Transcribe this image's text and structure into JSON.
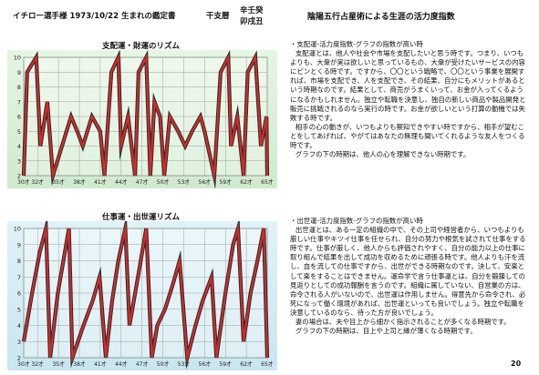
{
  "header": {
    "title": "イチロー選手様 1973/10/22 生まれの鑑定書",
    "kanshi_label": "干支暦",
    "kanshi_value_1": "辛壬癸",
    "kanshi_value_2": "卯戌丑",
    "doc_title": "陰陽五行占星術による生涯の活力度指数"
  },
  "chart_data": [
    {
      "type": "line",
      "title": "支配運・財運のリズム",
      "x": [
        "30才",
        "32才",
        "35才",
        "38才",
        "41才",
        "44才",
        "47才",
        "50才",
        "53才",
        "56才",
        "59才",
        "62才",
        "65才"
      ],
      "x_ages": [
        30,
        32,
        35,
        38,
        41,
        44,
        47,
        50,
        53,
        56,
        59,
        62,
        65
      ],
      "ylim": [
        2,
        10
      ],
      "yticks": [
        2,
        3,
        4,
        5,
        6,
        7,
        8,
        9,
        10
      ],
      "grid": true,
      "series": [
        {
          "values": [
            [
              30,
              2
            ],
            [
              30.5,
              9
            ],
            [
              31.8,
              10
            ],
            [
              32.4,
              4
            ],
            [
              33.4,
              7
            ],
            [
              34.2,
              2
            ],
            [
              35.5,
              4
            ],
            [
              36.8,
              6
            ],
            [
              37.7,
              5
            ],
            [
              38.5,
              4
            ],
            [
              39.8,
              6
            ],
            [
              41,
              5
            ],
            [
              41.6,
              2
            ],
            [
              42.6,
              9
            ],
            [
              43.6,
              10
            ],
            [
              44,
              4
            ],
            [
              45,
              6
            ],
            [
              46,
              2
            ],
            [
              46.5,
              9
            ],
            [
              47.6,
              10
            ],
            [
              48.2,
              2
            ],
            [
              48.8,
              7
            ],
            [
              49.6,
              6
            ],
            [
              50.2,
              2
            ],
            [
              51,
              6
            ],
            [
              52.2,
              5
            ],
            [
              53.2,
              4
            ],
            [
              54.2,
              5
            ],
            [
              55.4,
              6
            ],
            [
              56,
              5
            ],
            [
              57.4,
              2
            ],
            [
              58.3,
              9
            ],
            [
              59.4,
              10
            ],
            [
              59.8,
              4
            ],
            [
              60.7,
              6
            ],
            [
              61.6,
              2
            ],
            [
              62.2,
              9
            ],
            [
              63.3,
              10
            ],
            [
              64.1,
              4
            ],
            [
              64.9,
              6
            ],
            [
              65,
              2
            ]
          ]
        }
      ],
      "colors": {
        "line_fill": "#d42a2a",
        "line_edge": "#2a2a2a"
      }
    },
    {
      "type": "line",
      "title": "仕事運・出世運リズム",
      "x": [
        "30才",
        "32才",
        "35才",
        "38才",
        "41才",
        "44才",
        "47才",
        "50才",
        "53才",
        "56才",
        "59才",
        "62才",
        "65才"
      ],
      "x_ages": [
        30,
        32,
        35,
        38,
        41,
        44,
        47,
        50,
        53,
        56,
        59,
        62,
        65
      ],
      "ylim": [
        2,
        10
      ],
      "yticks": [
        2,
        3,
        4,
        5,
        6,
        7,
        8,
        9,
        10
      ],
      "grid": true,
      "series": [
        {
          "values": [
            [
              30,
              3
            ],
            [
              31.2,
              6
            ],
            [
              32.3,
              8.5
            ],
            [
              33.2,
              10
            ],
            [
              33.8,
              2
            ],
            [
              34.9,
              6
            ],
            [
              35.7,
              8
            ],
            [
              36.5,
              10
            ],
            [
              37,
              2
            ],
            [
              38.6,
              4
            ],
            [
              39.9,
              5.5
            ],
            [
              40.9,
              7
            ],
            [
              41.8,
              2
            ],
            [
              42.7,
              5.5
            ],
            [
              43.6,
              8
            ],
            [
              44.6,
              10
            ],
            [
              45.2,
              4
            ],
            [
              46.5,
              7.2
            ],
            [
              47.6,
              10
            ],
            [
              48.4,
              2
            ],
            [
              49.2,
              4
            ],
            [
              50.3,
              5
            ],
            [
              51.4,
              6.5
            ],
            [
              52.4,
              8
            ],
            [
              53.5,
              2
            ],
            [
              54.7,
              4
            ],
            [
              55.7,
              5.5
            ],
            [
              57,
              7
            ],
            [
              57.7,
              2
            ],
            [
              59,
              6
            ],
            [
              60.1,
              9
            ],
            [
              60.8,
              10
            ],
            [
              61.6,
              3
            ],
            [
              62.6,
              6
            ],
            [
              63.6,
              8
            ],
            [
              64.5,
              10
            ],
            [
              65,
              2
            ]
          ]
        }
      ],
      "colors": {
        "line_fill": "#d42a2a",
        "line_edge": "#2a2a2a"
      }
    }
  ],
  "text1": {
    "heading": "・支配運-活力度指数-グラフの指数が高い時",
    "body1": "支配運とは、他人や社会や市場を支配したいと思う時です。つまり、いつもよりも、大衆が実は欲しいと思っているもの、大衆が受けたいサービスの内容にピンとくる時です。ですから、〇〇という戦略で、〇〇という事業を展開すれば、市場を支配でき、人を支配でき、その結果、自分にもメリットがあるという時期なのです。結果として、商売がうまくいって、お金が入ってくるようになるかもしれません。独立や転職を決意し、独自の新しい商品や製品開発と販売に挑戦されるのなら実行の時です。お金が欲しいという打算の動機では失敗する時です。",
    "body2": "相手の心の動きが、いつもよりも察知できやすい時ですから、相手が望むことをしてあげれば、やがてはあなたの無理も聞いてくれるような友人をつくる時です。",
    "body3": "グラフの下の時期は、他人の心を理解できない時期です。"
  },
  "text2": {
    "heading": "・出世運-活力度指数-グラフの指数が高い時",
    "body1": "出世運とは、ある一定の組織の中で、その上司や経営者から、いつもよりも厳しい仕事やキツイ仕事を任せられ、自分の努力や根気を試されて仕事をする時です。仕事が厳しく、他人からも評価されやすく、自分の能力以上の仕事に取り組んで結果を出して成功を収めるために頑張る時です。他人よりも汗を流し、血を流しての仕事ですから、出世ができる時期なのです。決して、安楽として楽をすることはできません。運命学で言う仕事運とは、自分を鍛錬しての見返りとしての成功報酬を言うのです。組織に属していない、自営業の方は、命令される人がいないので、出世運は作用しません。得意先から命令され、必死になって働く環境があれば、出世運といっても良いでしょう。独立や転職を決意しているのなら、待った方が良いでしょう。",
    "body2": "妻の場合は、夫や目上から細かく指示されることが多くなる時期です。",
    "body3": "グラフの下の時期は、目上や上司と縁が薄くなる時期です。"
  },
  "page_number": "20"
}
